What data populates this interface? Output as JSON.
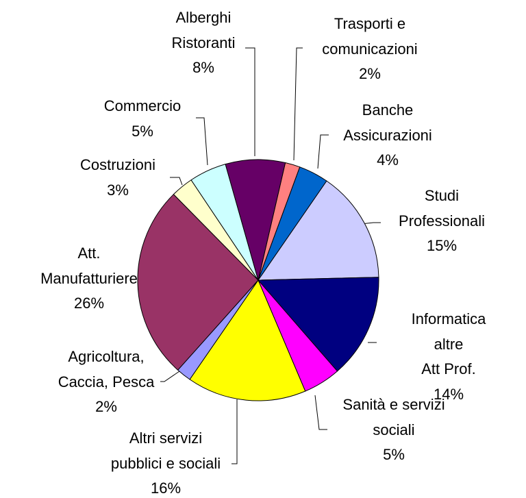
{
  "chart_data": {
    "type": "pie",
    "categories": [
      "Trasporti e\ncomunicazioni",
      "Banche\nAssicurazioni",
      "Studi\nProfessionali",
      "Informatica altre\nAtt Prof.",
      "Sanità e servizi\nsociali",
      "Altri servizi\npubblici e sociali",
      "Agricoltura,\nCaccia, Pesca",
      "Att.\nManufatturiere",
      "Costruzioni",
      "Commercio",
      "Alberghi\nRistoranti"
    ],
    "values": [
      2,
      4,
      15,
      14,
      5,
      16,
      2,
      26,
      3,
      5,
      8
    ],
    "value_labels": [
      "2%",
      "4%",
      "15%",
      "14%",
      "5%",
      "16%",
      "2%",
      "26%",
      "3%",
      "5%",
      "8%"
    ],
    "colors": [
      "#ff8080",
      "#0066cc",
      "#ccccff",
      "#000080",
      "#ff00ff",
      "#ffff00",
      "#9999ff",
      "#993366",
      "#ffffcc",
      "#ccffff",
      "#660066"
    ]
  }
}
